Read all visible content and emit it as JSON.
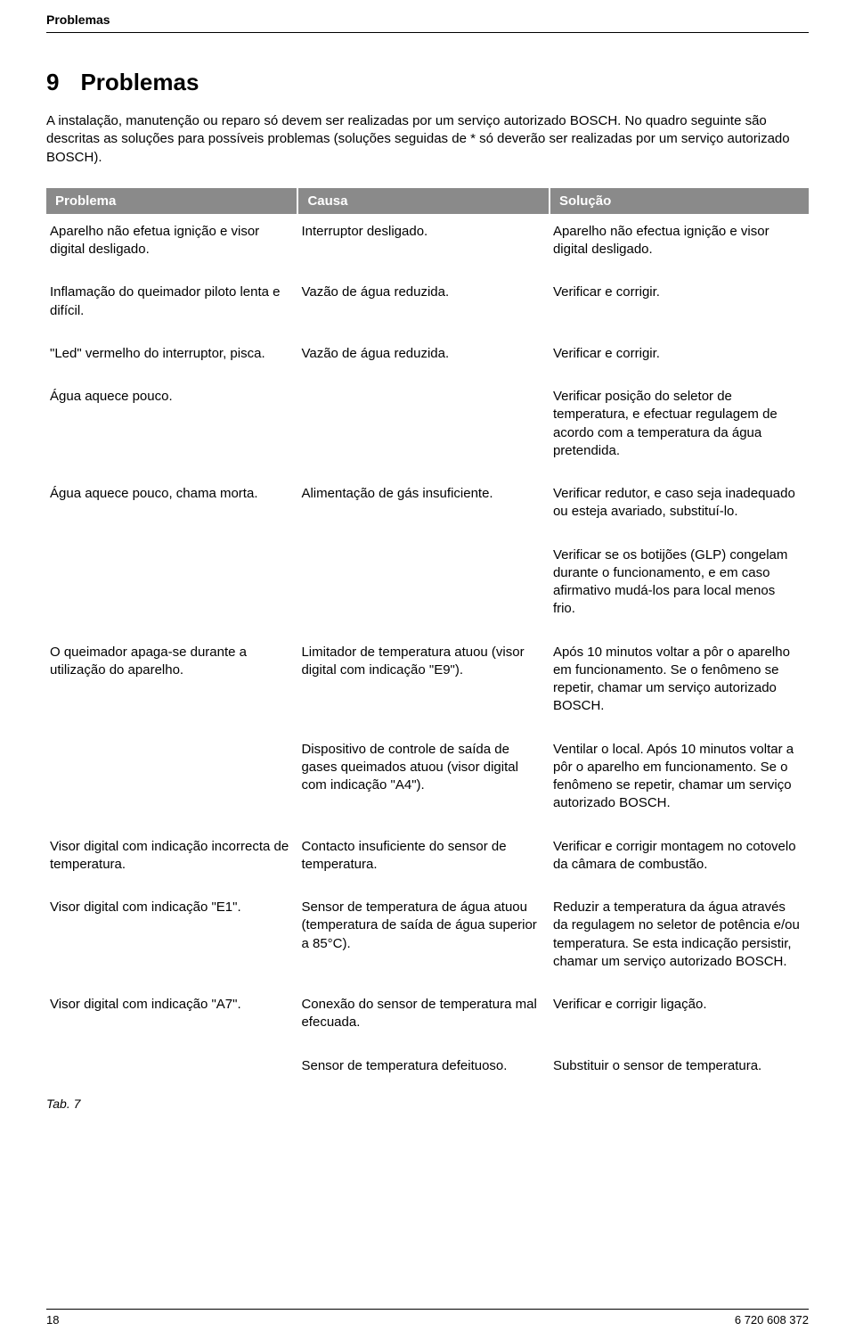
{
  "header": {
    "running": "Problemas"
  },
  "section": {
    "number": "9",
    "title": "Problemas",
    "intro": "A instalação, manutenção ou reparo só devem ser realizadas por um serviço autorizado BOSCH. No quadro seguinte são descritas as soluções para possíveis problemas (soluções seguidas de * só deverão ser realizadas por um serviço autorizado BOSCH)."
  },
  "table": {
    "columns": [
      "Problema",
      "Causa",
      "Solução"
    ],
    "rows": [
      {
        "problema": "Aparelho não efetua ignição e visor digital desligado.",
        "causa": "Interruptor desligado.",
        "solucao": "Aparelho não efectua ignição e visor digital desligado."
      },
      {
        "problema": "Inflamação do queimador piloto lenta  e difícil.",
        "causa": "Vazão de água reduzida.",
        "solucao": "Verificar e corrigir."
      },
      {
        "problema": "\"Led\" vermelho do interruptor, pisca.",
        "causa": "Vazão de água reduzida.",
        "solucao": "Verificar e corrigir."
      },
      {
        "problema": "Água aquece pouco.",
        "causa": "",
        "solucao": "Verificar posição do seletor de temperatura, e efectuar regulagem de acordo com a temperatura da água pretendida."
      },
      {
        "problema": "Água aquece pouco, chama morta.",
        "causa": "Alimentação de gás insuficiente.",
        "solucao": "Verificar redutor, e caso seja inadequado ou esteja avariado, substituí-lo."
      },
      {
        "problema": "",
        "causa": "",
        "solucao": "Verificar se os botijões (GLP) congelam durante o funcionamento, e em caso afirmativo mudá-los para local menos frio."
      },
      {
        "problema": "O queimador apaga-se durante a utilização do aparelho.",
        "causa": "Limitador de temperatura atuou (visor digital com indicação \"E9\").",
        "solucao": "Após 10 minutos voltar a pôr o aparelho em funcionamento. Se o fenômeno se repetir, chamar um serviço autorizado BOSCH."
      },
      {
        "problema": "",
        "causa": "Dispositivo de controle de saída de gases queimados atuou (visor digital com indicação \"A4\").",
        "solucao": "Ventilar o local. Após 10 minutos voltar a pôr o aparelho em funcionamento. Se o fenômeno se repetir, chamar um serviço autorizado BOSCH."
      },
      {
        "problema": "Visor digital com indicação incorrecta de temperatura.",
        "causa": "Contacto insuficiente do sensor de temperatura.",
        "solucao": "Verificar e corrigir montagem no cotovelo da câmara de combustão."
      },
      {
        "problema": "Visor digital com indicação \"E1\".",
        "causa": "Sensor de temperatura de água atuou (temperatura de saída de água superior a 85°C).",
        "solucao": "Reduzir a temperatura da água através da regulagem no seletor de potência e/ou temperatura. Se esta indicação persistir, chamar um serviço autorizado BOSCH."
      },
      {
        "problema": "Visor digital com indicação \"A7\".",
        "causa": "Conexão do sensor de temperatura mal efecuada.",
        "solucao": "Verificar e corrigir ligação."
      },
      {
        "problema": "",
        "causa": "Sensor de temperatura defeituoso.",
        "solucao": "Substituir o sensor de temperatura."
      }
    ],
    "caption": "Tab. 7"
  },
  "footer": {
    "page": "18",
    "doc_number": "6 720 608 372"
  }
}
